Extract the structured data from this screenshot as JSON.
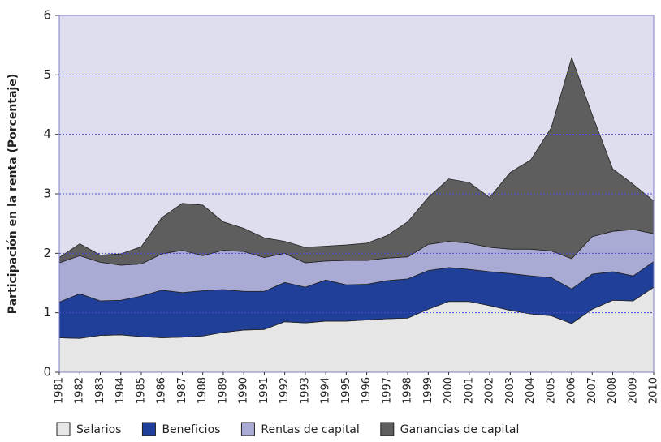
{
  "chart_data": {
    "type": "stacked_area",
    "y_label": "Participación en la renta (Porcentaje)",
    "categories": [
      "1981",
      "1982",
      "1983",
      "1984",
      "1985",
      "1986",
      "1987",
      "1988",
      "1989",
      "1990",
      "1991",
      "1992",
      "1993",
      "1994",
      "1995",
      "1996",
      "1997",
      "1998",
      "1999",
      "2000",
      "2001",
      "2002",
      "2003",
      "2004",
      "2005",
      "2006",
      "2007",
      "2008",
      "2009",
      "2010"
    ],
    "series": [
      {
        "name": "Salarios",
        "color": "#e6e6e6",
        "values": [
          0.58,
          0.57,
          0.62,
          0.63,
          0.6,
          0.58,
          0.59,
          0.61,
          0.67,
          0.71,
          0.72,
          0.85,
          0.83,
          0.86,
          0.86,
          0.88,
          0.9,
          0.91,
          1.06,
          1.19,
          1.19,
          1.12,
          1.04,
          0.98,
          0.95,
          0.82,
          1.06,
          1.21,
          1.2,
          1.43
        ]
      },
      {
        "name": "Beneficios",
        "color": "#1f3f99",
        "values": [
          0.6,
          0.75,
          0.58,
          0.58,
          0.68,
          0.8,
          0.75,
          0.76,
          0.72,
          0.65,
          0.64,
          0.66,
          0.6,
          0.69,
          0.61,
          0.6,
          0.64,
          0.66,
          0.65,
          0.57,
          0.54,
          0.57,
          0.62,
          0.64,
          0.64,
          0.58,
          0.59,
          0.48,
          0.42,
          0.43
        ]
      },
      {
        "name": "Rentas de capital",
        "color": "#a9abd4",
        "values": [
          0.66,
          0.64,
          0.65,
          0.59,
          0.54,
          0.61,
          0.71,
          0.59,
          0.66,
          0.67,
          0.57,
          0.49,
          0.41,
          0.32,
          0.41,
          0.4,
          0.38,
          0.37,
          0.44,
          0.44,
          0.44,
          0.41,
          0.41,
          0.45,
          0.45,
          0.51,
          0.63,
          0.68,
          0.78,
          0.47
        ]
      },
      {
        "name": "Ganancias de capital",
        "color": "#5e5e5e",
        "values": [
          0.09,
          0.2,
          0.12,
          0.19,
          0.29,
          0.61,
          0.79,
          0.85,
          0.48,
          0.39,
          0.33,
          0.2,
          0.26,
          0.25,
          0.26,
          0.29,
          0.38,
          0.59,
          0.79,
          1.05,
          1.02,
          0.84,
          1.29,
          1.5,
          2.07,
          3.38,
          2.05,
          1.05,
          0.76,
          0.55
        ]
      }
    ],
    "ylim": [
      0,
      6
    ],
    "yticks": [
      0,
      1,
      2,
      3,
      4,
      5,
      6
    ],
    "grid": true
  }
}
